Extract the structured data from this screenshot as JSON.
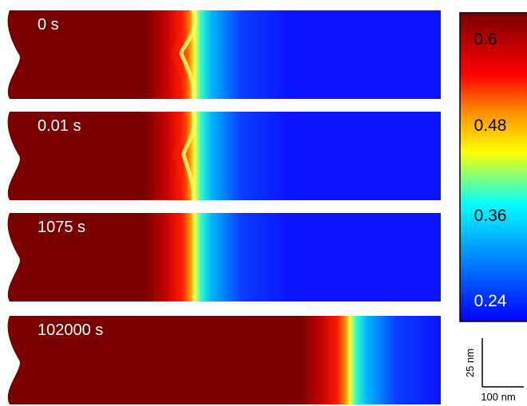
{
  "panels": [
    {
      "time_label": "0 s",
      "front_shape": "wavy",
      "front_amplitude": 1.0
    },
    {
      "time_label": "0.01 s",
      "front_shape": "wavy",
      "front_amplitude": 0.85
    },
    {
      "time_label": "1075 s",
      "front_shape": "flat",
      "front_amplitude": 0
    },
    {
      "time_label": "102000 s",
      "front_shape": "flat",
      "front_amplitude": 0
    }
  ],
  "colorbar": {
    "ticks": [
      "0.6",
      "0.48",
      "0.36",
      "0.24"
    ],
    "tick_values": [
      0.6,
      0.48,
      0.36,
      0.24
    ],
    "min": 0.22,
    "max": 0.62,
    "colormap": [
      "#7a0000",
      "#ff0000",
      "#ffff00",
      "#00ffff",
      "#0000ff"
    ]
  },
  "scale_bar": {
    "vertical_label": "25 nm",
    "horizontal_label": "100 nm"
  },
  "colors": {
    "dark_red": "#7a0000",
    "blue": "#0a14ff",
    "label_text": "#ffffff",
    "text": "#000000"
  }
}
